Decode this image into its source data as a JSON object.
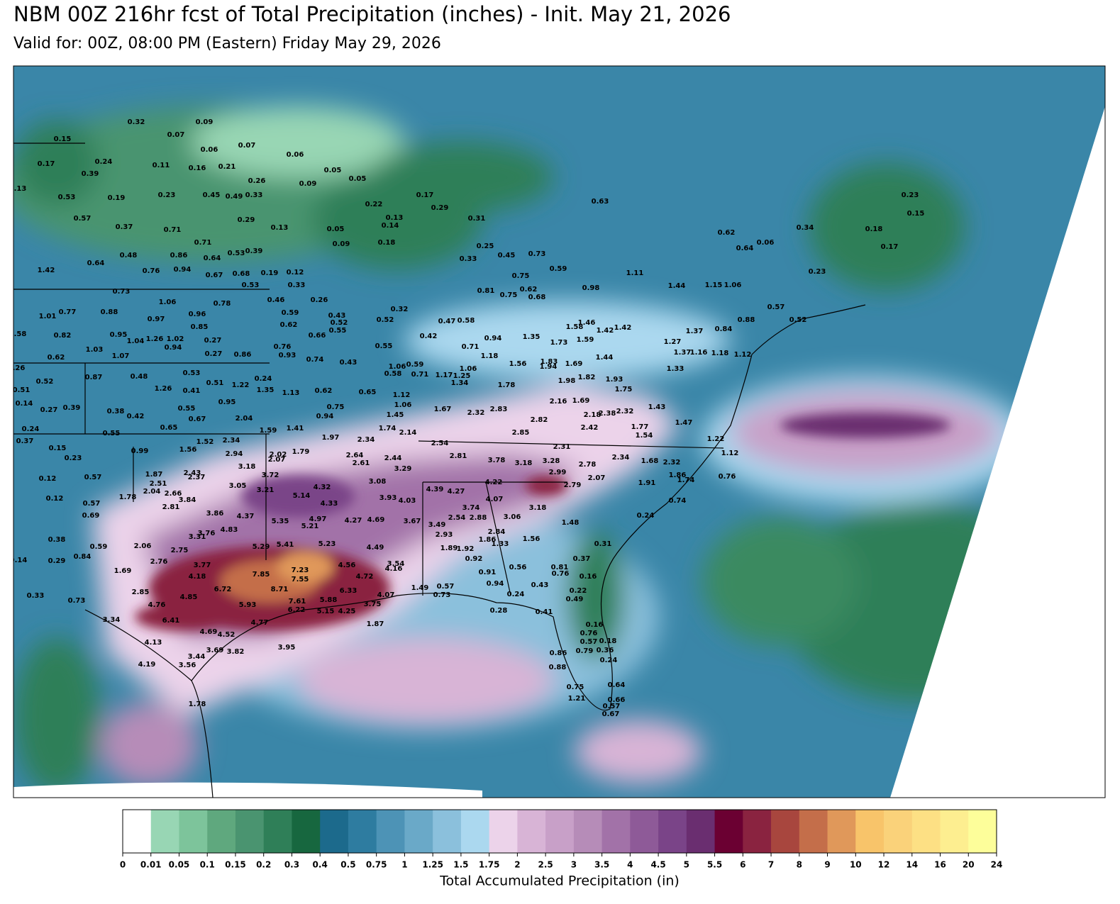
{
  "title": "NBM 00Z 216hr fcst of Total Precipitation (inches) - Init. May 21, 2026",
  "subtitle": "Valid for: 00Z, 08:00 PM (Eastern) Friday May 29, 2026",
  "colorbar": {
    "label": "Total Accumulated Precipitation (in)",
    "levels": [
      0,
      0.01,
      0.05,
      0.1,
      0.15,
      0.2,
      0.3,
      0.4,
      0.5,
      0.75,
      1,
      1.25,
      1.5,
      1.75,
      2,
      2.5,
      3,
      3.5,
      4,
      4.5,
      5,
      5.5,
      6,
      7,
      8,
      9,
      10,
      12,
      14,
      16,
      20,
      24
    ],
    "colors": [
      "#ffffff",
      "#98d6b4",
      "#7dc49b",
      "#5fa87e",
      "#4a9470",
      "#2f7f58",
      "#17673f",
      "#1c6a8c",
      "#2e7ca0",
      "#4d93b6",
      "#6aa9c8",
      "#8bc0dc",
      "#abd8ef",
      "#ecd3ea",
      "#d8b4d6",
      "#c8a0c8",
      "#b68cb8",
      "#a272a8",
      "#8e5a98",
      "#7a4488",
      "#6a2e70",
      "#6b0032",
      "#8a2340",
      "#a8463e",
      "#c46e4a",
      "#e0985a",
      "#f8c46a",
      "#fad27a",
      "#fde084",
      "#fdee90",
      "#fdfe9a"
    ]
  },
  "point_values": [
    0.32,
    0.09,
    0.07,
    0.15,
    0.06,
    0.07,
    0.06,
    0.17,
    0.24,
    0.11,
    0.16,
    0.21,
    0.05,
    0.05,
    0.39,
    0.26,
    0.09,
    0.13,
    0.53,
    0.19,
    0.23,
    0.45,
    0.49,
    0.33,
    0.22,
    0.17,
    0.29,
    0.57,
    0.29,
    0.05,
    0.13,
    0.14,
    0.31,
    0.63,
    0.37,
    0.71,
    0.71,
    0.13,
    0.09,
    0.18,
    0.34,
    0.23,
    0.15,
    0.18,
    0.17,
    0.62,
    0.64,
    0.06,
    0.48,
    0.86,
    0.64,
    0.53,
    0.39,
    0.25,
    0.45,
    0.73,
    0.33,
    1.42,
    0.64,
    0.76,
    0.94,
    0.67,
    0.68,
    0.19,
    0.12,
    0.59,
    0.75,
    1.11,
    1.44,
    0.98,
    1.15,
    1.06,
    0.23,
    0.73,
    1.06,
    0.78,
    0.53,
    0.33,
    0.46,
    0.59,
    0.26,
    0.43,
    0.52,
    0.32,
    0.47,
    0.58,
    0.81,
    0.75,
    0.62,
    0.68,
    0.57,
    0.52,
    1.01,
    0.77,
    0.88,
    0.97,
    0.96,
    0.85,
    0.62,
    0.66,
    0.55,
    0.52,
    0.42,
    1.58,
    1.46,
    1.42,
    1.42,
    1.37,
    0.84,
    0.88,
    0.58,
    0.82,
    0.95,
    1.04,
    1.26,
    1.02,
    0.94,
    0.27,
    0.27,
    0.76,
    0.93,
    0.74,
    0.55,
    0.71,
    0.94,
    1.18,
    1.35,
    1.73,
    1.59,
    1.27,
    1.03,
    1.07,
    0.62,
    0.86,
    0.43,
    1.56,
    1.83,
    1.94,
    1.69,
    1.44,
    1.37,
    1.16,
    1.18,
    1.12,
    0.26,
    0.87,
    0.48,
    0.53,
    0.24,
    1.06,
    0.58,
    0.59,
    0.71,
    1.17,
    1.25,
    1.06,
    1.34,
    1.98,
    1.82,
    1.93,
    1.33,
    0.52,
    0.51,
    1.22,
    1.35,
    1.13,
    0.62,
    0.65,
    1.12,
    1.78,
    1.75,
    0.51,
    0.14,
    0.27,
    0.39,
    1.26,
    0.41,
    0.55,
    0.95,
    0.75,
    1.06,
    2.16,
    1.69,
    2.18,
    2.38,
    2.32,
    1.43,
    0.38,
    0.42,
    0.67,
    2.04,
    0.94,
    1.45,
    1.67,
    2.32,
    2.83,
    2.82,
    2.42,
    1.77,
    1.47,
    0.24,
    0.55,
    0.65,
    1.59,
    1.41,
    1.97,
    2.34,
    1.74,
    2.14,
    2.85,
    1.54,
    1.22,
    0.37,
    0.15,
    1.52,
    2.34,
    0.99,
    1.56,
    2.94,
    2.02,
    1.79,
    2.64,
    2.44,
    2.54,
    2.81,
    3.78,
    3.18,
    3.28,
    2.31,
    2.78,
    2.34,
    1.68,
    2.32,
    1.12,
    0.23,
    2.07,
    2.61,
    3.29,
    3.18,
    3.72,
    1.87,
    2.43,
    2.37,
    2.99,
    2.07,
    1.86,
    0.12,
    0.57,
    2.51,
    3.05,
    4.32,
    3.08,
    4.39,
    4.27,
    4.22,
    2.79,
    1.91,
    1.74,
    0.76,
    2.04,
    2.66,
    3.21,
    5.14,
    3.93,
    4.03,
    4.07,
    1.78,
    0.12,
    0.57,
    4.33,
    3.84,
    0.74,
    2.81,
    3.86,
    3.74,
    3.18,
    0.69,
    4.37,
    5.35,
    4.97,
    4.27,
    4.69,
    3.67,
    3.49,
    2.54,
    2.88,
    3.06,
    0.24,
    5.21,
    4.83,
    3.76,
    3.31,
    2.84,
    1.48,
    2.93,
    0.38,
    5.29,
    5.41,
    5.23,
    4.49,
    1.86,
    1.33,
    1.56,
    0.59,
    2.06,
    2.75,
    1.89,
    1.92,
    0.31,
    0.14,
    0.84,
    0.29,
    2.76,
    3.77,
    3.54,
    0.92,
    0.37,
    1.69,
    7.85,
    7.23,
    4.56,
    4.16,
    0.91,
    0.56,
    0.81,
    0.76,
    0.16,
    4.18,
    4.72,
    7.55,
    6.72,
    8.71,
    6.33,
    4.07,
    1.49,
    0.57,
    0.94,
    0.43,
    0.33,
    2.85,
    4.85,
    5.93,
    7.61,
    5.88,
    0.73,
    0.24,
    0.22,
    0.73,
    4.76,
    6.22,
    5.15,
    4.25,
    3.75,
    0.49,
    0.28,
    0.41,
    3.34,
    6.41,
    4.77,
    1.87,
    0.16,
    4.69,
    4.52,
    0.76,
    4.13,
    3.69,
    3.82,
    3.95,
    0.18,
    0.57,
    3.44,
    3.56,
    4.19,
    0.36,
    0.86,
    0.79,
    0.88,
    0.24,
    0.75,
    0.64,
    1.21,
    0.66,
    1.78,
    0.57,
    0.67
  ]
}
